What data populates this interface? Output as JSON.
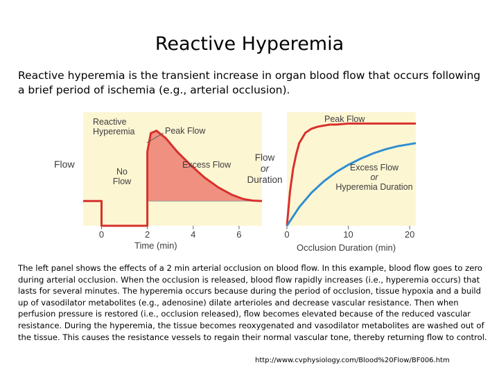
{
  "slide": {
    "title": "Reactive Hyperemia",
    "intro": "Reactive hyperemia is the transient increase in organ blood flow that occurs following a brief period of ischemia (e.g., arterial occlusion).",
    "body": "The left panel shows the effects of a 2 min arterial occlusion on blood flow. In this example, blood flow goes to zero during arterial occlusion. When the occlusion is released, blood flow rapidly increases (i.e., hyperemia occurs) that lasts for several minutes. The hyperemia occurs because during the period of occlusion, tissue hypoxia and a build up of vasodilator metabolites (e.g., adenosine) dilate arterioles and decrease vascular resistance. Then when perfusion pressure is restored (i.e., occlusion released), flow becomes elevated because of the reduced vascular resistance. During the hyperemia, the tissue becomes reoxygenated and vasodilator metabolites are washed out of the tissue. This causes the resistance vessels to regain their normal vascular tone, thereby returning flow to control.",
    "source": "http://www.cvphysiology.com/Blood%20Flow/BF006.htm"
  },
  "colors": {
    "panel_bg": "#fdf6d3",
    "curve": "#d8302c",
    "excess_fill": "#ef9080",
    "curve2": "#2f8ed0"
  },
  "chart_data": [
    {
      "type": "line",
      "ylabel": "Flow",
      "xlabel": "Time (min)",
      "x_ticks": [
        "0",
        "2",
        "4",
        "6"
      ],
      "xlim": [
        -0.8,
        7.0
      ],
      "ylim": [
        0,
        4.6
      ],
      "annotations": {
        "reactive": "Reactive Hyperemia",
        "peak": "Peak Flow",
        "excess": "Excess Flow",
        "noflow": "No Flow"
      },
      "series": [
        {
          "x": [
            -0.8,
            0,
            0,
            2,
            2,
            2.15,
            2.4,
            2.8,
            3.3,
            3.9,
            4.5,
            5.1,
            5.7,
            6.2,
            6.6,
            7.0
          ],
          "y": [
            1.0,
            1.0,
            0,
            0,
            3.0,
            3.75,
            3.85,
            3.55,
            3.0,
            2.45,
            1.95,
            1.55,
            1.25,
            1.08,
            1.02,
            1.0
          ]
        }
      ]
    },
    {
      "type": "line",
      "ylabel": "Flow or Duration",
      "xlabel": "Occlusion Duration (min)",
      "x_ticks": [
        "0",
        "10",
        "20"
      ],
      "xlim": [
        0,
        21
      ],
      "ylim": [
        0,
        1.1
      ],
      "series": [
        {
          "name": "Peak Flow",
          "x": [
            0,
            0.5,
            1,
            1.5,
            2,
            3,
            4,
            5,
            6,
            7,
            8,
            10,
            12,
            14,
            17,
            21
          ],
          "y": [
            0,
            0.33,
            0.55,
            0.69,
            0.8,
            0.9,
            0.94,
            0.96,
            0.97,
            0.98,
            0.98,
            0.99,
            0.99,
            0.99,
            0.99,
            0.99
          ]
        },
        {
          "name": "Excess Flow or Hyperemia Duration",
          "x": [
            0,
            1,
            2,
            4,
            6,
            8,
            10,
            12,
            14,
            16,
            18,
            21
          ],
          "y": [
            0,
            0.09,
            0.18,
            0.32,
            0.43,
            0.52,
            0.59,
            0.65,
            0.7,
            0.74,
            0.77,
            0.8
          ]
        }
      ]
    }
  ]
}
